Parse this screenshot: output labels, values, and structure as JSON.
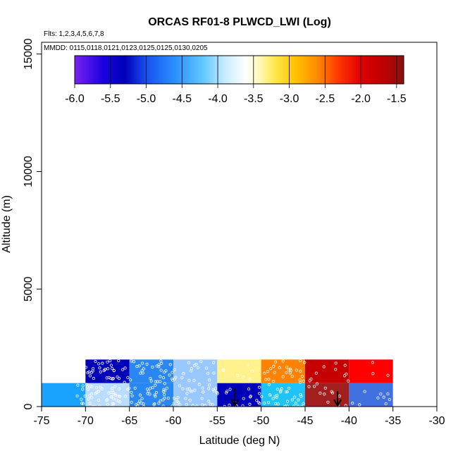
{
  "chart_data": {
    "type": "heatmap",
    "title": "ORCAS RF01-8 PLWCD_LWI (Log)",
    "annotations": {
      "flights": "Flts: 1,2,3,4,5,6,7,8",
      "dates": "MMDD: 0115,0118,0121,0123,0125,0125,0130,0205"
    },
    "xlabel": "Latitude (deg N)",
    "ylabel": "Altitude (m)",
    "xlim": [
      -75,
      -30
    ],
    "ylim": [
      0,
      15500
    ],
    "x_ticks": [
      -75,
      -70,
      -65,
      -60,
      -55,
      -50,
      -45,
      -40,
      -35,
      -30
    ],
    "x_tick_labels": [
      "-75",
      "-70",
      "-65",
      "-60",
      "-55",
      "-50",
      "-45",
      "-40",
      "-35",
      "-30"
    ],
    "y_ticks": [
      0,
      5000,
      10000,
      15000
    ],
    "y_tick_labels": [
      "0",
      "5000",
      "10000",
      "15000"
    ],
    "colorbar": {
      "range": [
        -6.0,
        -1.4
      ],
      "tick_values": [
        -6.0,
        -5.5,
        -5.0,
        -4.5,
        -4.0,
        -3.5,
        -3.0,
        -2.5,
        -2.0,
        -1.5
      ],
      "tick_labels": [
        "-6.0",
        "-5.5",
        "-5.0",
        "-4.5",
        "-4.0",
        "-3.5",
        "-3.0",
        "-2.5",
        "-2.0",
        "-1.5"
      ],
      "stops": [
        {
          "v": -6.0,
          "color": "#7a22f0"
        },
        {
          "v": -5.6,
          "color": "#1a00e0"
        },
        {
          "v": -5.3,
          "color": "#0000b8"
        },
        {
          "v": -5.0,
          "color": "#1850f0"
        },
        {
          "v": -4.6,
          "color": "#2a90ff"
        },
        {
          "v": -4.2,
          "color": "#62c8ff"
        },
        {
          "v": -3.9,
          "color": "#c8ecff"
        },
        {
          "v": -3.6,
          "color": "#ffffff"
        },
        {
          "v": -3.4,
          "color": "#fff7b0"
        },
        {
          "v": -3.2,
          "color": "#ffe84a"
        },
        {
          "v": -2.9,
          "color": "#ffc000"
        },
        {
          "v": -2.6,
          "color": "#ff8800"
        },
        {
          "v": -2.3,
          "color": "#ff3300"
        },
        {
          "v": -2.0,
          "color": "#e00000"
        },
        {
          "v": -1.7,
          "color": "#c00000"
        },
        {
          "v": -1.4,
          "color": "#8a1010"
        }
      ]
    },
    "cells": [
      {
        "x0": -75,
        "x1": -70,
        "y0": 0,
        "y1": 1000,
        "value": -4.55,
        "color": "#1aa2ff"
      },
      {
        "x0": -70,
        "x1": -65,
        "y0": 0,
        "y1": 1000,
        "value": -3.9,
        "color": "#b9dcff"
      },
      {
        "x0": -65,
        "x1": -60,
        "y0": 0,
        "y1": 1000,
        "value": -4.7,
        "color": "#2a86f0"
      },
      {
        "x0": -60,
        "x1": -55,
        "y0": 0,
        "y1": 1000,
        "value": -4.15,
        "color": "#99c8ff"
      },
      {
        "x0": -55,
        "x1": -50,
        "y0": 0,
        "y1": 1000,
        "value": -5.4,
        "color": "#0000b8"
      },
      {
        "x0": -50,
        "x1": -45,
        "y0": 0,
        "y1": 1000,
        "value": -4.4,
        "color": "#1ec3f7"
      },
      {
        "x0": -45,
        "x1": -40,
        "y0": 0,
        "y1": 1000,
        "value": -1.6,
        "color": "#a31e1e"
      },
      {
        "x0": -40,
        "x1": -35,
        "y0": 0,
        "y1": 1000,
        "value": -4.85,
        "color": "#4170e0"
      },
      {
        "x0": -70,
        "x1": -65,
        "y0": 1000,
        "y1": 2000,
        "value": -5.45,
        "color": "#0000b8"
      },
      {
        "x0": -65,
        "x1": -60,
        "y0": 1000,
        "y1": 2000,
        "value": -4.75,
        "color": "#2a86f0"
      },
      {
        "x0": -60,
        "x1": -55,
        "y0": 1000,
        "y1": 2000,
        "value": -4.15,
        "color": "#99c8ff"
      },
      {
        "x0": -55,
        "x1": -50,
        "y0": 1000,
        "y1": 2000,
        "value": -3.3,
        "color": "#fff18b"
      },
      {
        "x0": -50,
        "x1": -45,
        "y0": 1000,
        "y1": 2000,
        "value": -2.6,
        "color": "#ff8300"
      },
      {
        "x0": -45,
        "x1": -40,
        "y0": 1000,
        "y1": 2000,
        "value": -1.8,
        "color": "#c40000"
      },
      {
        "x0": -40,
        "x1": -35,
        "y0": 1000,
        "y1": 2000,
        "value": -2.05,
        "color": "#ff0000"
      }
    ],
    "arrows": [
      {
        "x": -53,
        "y_top": 750,
        "y_bottom": 0
      },
      {
        "x": -41.3,
        "y_top": 650,
        "y_bottom": 0
      }
    ],
    "observations": [
      {
        "x0": -71,
        "x1": -65,
        "y0": 0,
        "y1": 2000,
        "count": 95
      },
      {
        "x0": -65,
        "x1": -60,
        "y0": 0,
        "y1": 2000,
        "count": 70
      },
      {
        "x0": -60,
        "x1": -55,
        "y0": 0,
        "y1": 2000,
        "count": 55
      },
      {
        "x0": -55,
        "x1": -50,
        "y0": 0,
        "y1": 2000,
        "count": 25
      },
      {
        "x0": -50,
        "x1": -45,
        "y0": 0,
        "y1": 2000,
        "count": 60
      },
      {
        "x0": -45,
        "x1": -40,
        "y0": 0,
        "y1": 2000,
        "count": 22
      },
      {
        "x0": -40,
        "x1": -35,
        "y0": 0,
        "y1": 2000,
        "count": 12
      }
    ]
  }
}
